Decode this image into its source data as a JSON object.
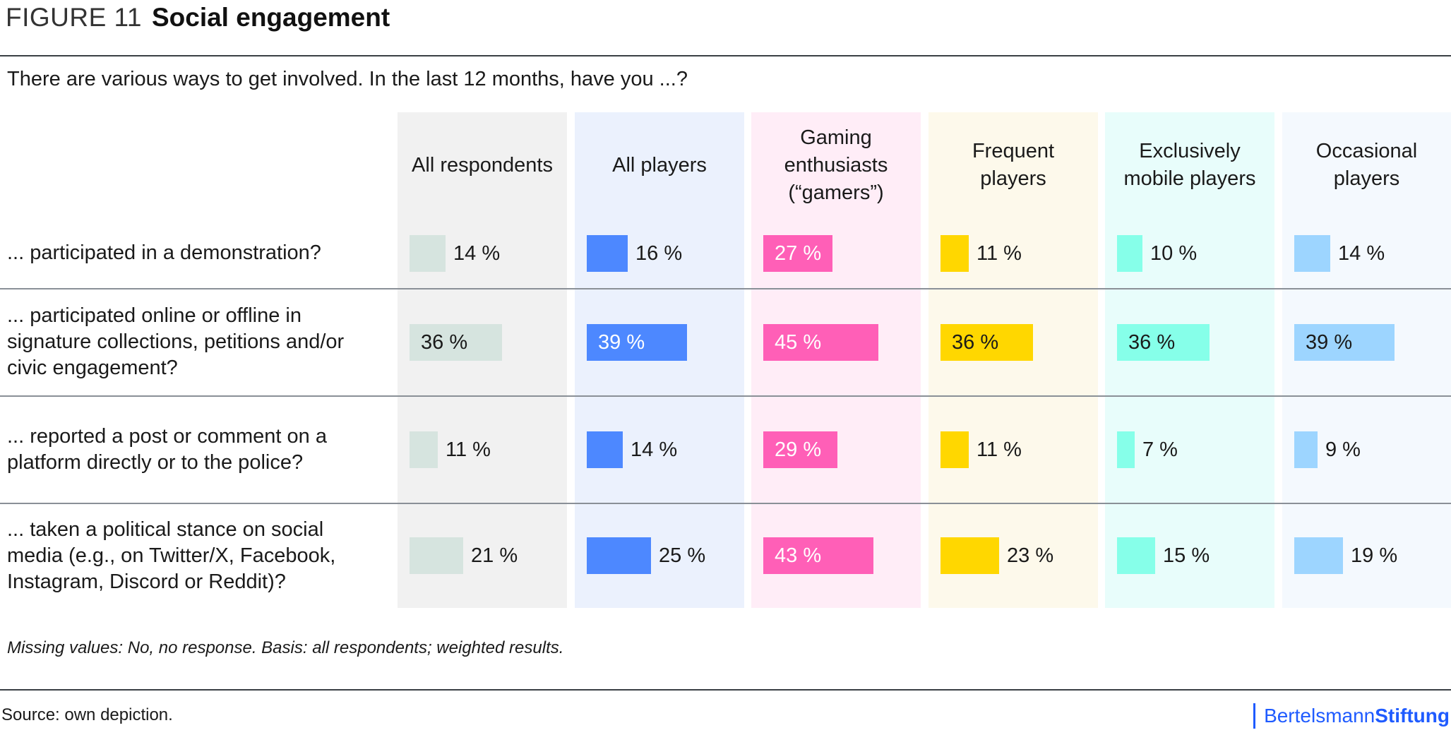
{
  "figure": {
    "number_label": "FIGURE 11",
    "title": "Social engagement",
    "subtitle": "There are various ways to get involved. In the last 12 months, have you ...?",
    "note": "Missing values: No, no response. Basis: all respondents; weighted results.",
    "source": "Source: own depiction.",
    "logo": {
      "part1": "Bertelsmann",
      "part2": "Stiftung",
      "color": "#1f5bff"
    }
  },
  "chart_data": {
    "type": "bar",
    "orientation": "horizontal",
    "layout": "small-multiples-table",
    "title": "Social engagement",
    "subtitle": "There are various ways to get involved. In the last 12 months, have you ...?",
    "unit": "%",
    "categories": [
      "... participated in a demonstration?",
      "... participated online or offline in signature collections, petitions and/or civic engagement?",
      "... reported a post or comment on a platform directly or to the police?",
      "... taken a political stance on social media (e.g., on Twitter/X, Facebook, Instagram, Discord or Reddit)?"
    ],
    "series": [
      {
        "name": "All respondents",
        "values": [
          14,
          36,
          11,
          21
        ],
        "bar_color": "#d6e4df",
        "bg_color": "#f1f1f1",
        "text_color": "#1a1a1a"
      },
      {
        "name": "All players",
        "values": [
          16,
          39,
          14,
          25
        ],
        "bar_color": "#4d88ff",
        "bg_color": "#ebf1fd",
        "text_color": "#ffffff"
      },
      {
        "name": "Gaming enthusiasts (“gamers”)",
        "values": [
          27,
          45,
          29,
          43
        ],
        "bar_color": "#ff5fb7",
        "bg_color": "#ffedf7",
        "text_color": "#ffffff"
      },
      {
        "name": "Frequent players",
        "values": [
          11,
          36,
          11,
          23
        ],
        "bar_color": "#ffd700",
        "bg_color": "#fdf9eb",
        "text_color": "#1a1a1a"
      },
      {
        "name": "Exclusively mobile players",
        "values": [
          10,
          36,
          7,
          15
        ],
        "bar_color": "#86ffe9",
        "bg_color": "#e8fdfb",
        "text_color": "#1a1a1a"
      },
      {
        "name": "Occasional players",
        "values": [
          14,
          39,
          9,
          19
        ],
        "bar_color": "#9dd5ff",
        "bg_color": "#f4f9fe",
        "text_color": "#1a1a1a"
      }
    ],
    "labels_inside_threshold": 27,
    "xlim": [
      0,
      100
    ],
    "grid": false,
    "legend": "none (column headers)"
  }
}
